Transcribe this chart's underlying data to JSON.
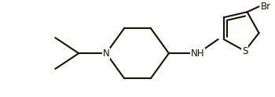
{
  "background_color": "#ffffff",
  "line_color": "#1a1200",
  "line_width": 1.5,
  "font_size": 8.5,
  "label_color": "#1a1200",
  "figsize": [
    3.5,
    1.24
  ],
  "dpi": 100,
  "xlim": [
    0.0,
    1.0
  ],
  "ylim": [
    0.0,
    1.0
  ]
}
